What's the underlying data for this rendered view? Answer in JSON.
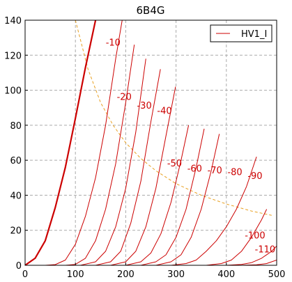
{
  "chart_data": {
    "type": "line",
    "title": "6B4G",
    "xlabel": "",
    "ylabel": "",
    "xlim": [
      0,
      500
    ],
    "ylim": [
      0,
      140
    ],
    "xticks": [
      0,
      100,
      200,
      300,
      400,
      500
    ],
    "yticks": [
      0,
      20,
      40,
      60,
      80,
      100,
      120,
      140
    ],
    "grid": true,
    "legend": {
      "placement": "top-right",
      "entries": [
        {
          "name": "HV1_I",
          "color": "#cc0000"
        }
      ]
    },
    "colors": {
      "curves": "#cc0000",
      "load_line": "#e8a020",
      "grid": "#aaaaaa",
      "axes": "#000000"
    },
    "series": [
      {
        "grid_voltage": 0,
        "label": "",
        "bold": true,
        "x": [
          0,
          20,
          40,
          60,
          80,
          100,
          120,
          140
        ],
        "y": [
          0,
          4,
          14,
          33,
          56,
          84,
          113,
          140
        ]
      },
      {
        "grid_voltage": -10,
        "label": "-10",
        "x": [
          40,
          60,
          80,
          100,
          120,
          140,
          160,
          180,
          193
        ],
        "y": [
          0,
          0.4,
          3,
          12,
          28,
          50,
          80,
          118,
          140
        ]
      },
      {
        "grid_voltage": -20,
        "label": "-20",
        "x": [
          80,
          100,
          120,
          140,
          160,
          180,
          200,
          217
        ],
        "y": [
          0,
          0.5,
          4,
          14,
          32,
          58,
          93,
          126
        ]
      },
      {
        "grid_voltage": -30,
        "label": "-30",
        "x": [
          110,
          140,
          160,
          180,
          200,
          220,
          240
        ],
        "y": [
          0,
          2,
          8,
          22,
          44,
          76,
          118
        ]
      },
      {
        "grid_voltage": -40,
        "label": "-40",
        "x": [
          140,
          170,
          190,
          210,
          230,
          250,
          269
        ],
        "y": [
          0,
          2,
          8,
          24,
          48,
          82,
          112
        ]
      },
      {
        "grid_voltage": -50,
        "label": "-50",
        "x": [
          170,
          200,
          220,
          240,
          260,
          280,
          299
        ],
        "y": [
          0,
          2,
          8,
          22,
          44,
          74,
          102
        ]
      },
      {
        "grid_voltage": -60,
        "label": "-60",
        "x": [
          200,
          230,
          250,
          270,
          290,
          310,
          325
        ],
        "y": [
          0,
          2,
          7,
          18,
          36,
          60,
          80
        ]
      },
      {
        "grid_voltage": -70,
        "label": "-70",
        "x": [
          230,
          260,
          280,
          300,
          320,
          340,
          356
        ],
        "y": [
          0,
          2,
          6,
          16,
          32,
          56,
          78
        ]
      },
      {
        "grid_voltage": -80,
        "label": "-80",
        "x": [
          260,
          290,
          310,
          330,
          350,
          370,
          386
        ],
        "y": [
          0,
          2,
          6,
          16,
          32,
          54,
          75
        ]
      },
      {
        "grid_voltage": -90,
        "label": "-90",
        "x": [
          290,
          320,
          340,
          360,
          380,
          400,
          420,
          440,
          460
        ],
        "y": [
          0,
          1,
          3,
          8,
          14,
          22,
          32,
          45,
          62
        ]
      },
      {
        "grid_voltage": -100,
        "label": "-100",
        "x": [
          360,
          390,
          410,
          430,
          450,
          470,
          480
        ],
        "y": [
          0,
          1,
          3,
          8,
          16,
          26,
          32
        ]
      },
      {
        "grid_voltage": -110,
        "label": "-110",
        "x": [
          400,
          430,
          450,
          470,
          490,
          500
        ],
        "y": [
          0,
          0.5,
          1.5,
          4,
          8,
          11
        ]
      },
      {
        "grid_voltage": -120,
        "label": "",
        "x": [
          430,
          460,
          480,
          500
        ],
        "y": [
          0,
          0.3,
          1,
          3
        ]
      }
    ],
    "load_line": {
      "style": "dashed",
      "x": [
        100,
        125,
        150,
        175,
        200,
        230,
        260,
        300,
        350,
        400,
        450,
        490
      ],
      "y": [
        140,
        112,
        93,
        80,
        70,
        61,
        54,
        46.6,
        40,
        35,
        31,
        28.5
      ]
    },
    "annotations": [
      {
        "text": "-10",
        "x": 175,
        "y": 127
      },
      {
        "text": "-20",
        "x": 197,
        "y": 96
      },
      {
        "text": "-30",
        "x": 237,
        "y": 91
      },
      {
        "text": "-40",
        "x": 277,
        "y": 88
      },
      {
        "text": "-50",
        "x": 297,
        "y": 58
      },
      {
        "text": "-60",
        "x": 337,
        "y": 55
      },
      {
        "text": "-70",
        "x": 377,
        "y": 54
      },
      {
        "text": "-80",
        "x": 417,
        "y": 53
      },
      {
        "text": "-90",
        "x": 457,
        "y": 51
      },
      {
        "text": "-100",
        "x": 457,
        "y": 17
      },
      {
        "text": "-110",
        "x": 477,
        "y": 9
      }
    ]
  }
}
